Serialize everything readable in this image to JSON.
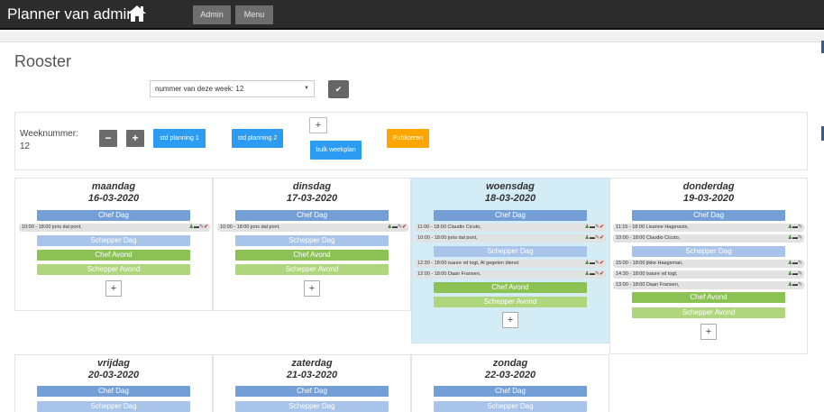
{
  "header": {
    "brand": "Planner van admin",
    "home_icon": "home-icon",
    "nav": [
      {
        "label": "Admin"
      },
      {
        "label": "Menu"
      }
    ]
  },
  "page": {
    "title": "Rooster",
    "week_select": "nummer van deze week: 12",
    "confirm_icon": "check-icon"
  },
  "controls": {
    "week_label": "Weeknummer:",
    "week_number": "12",
    "minus": "−",
    "plus": "+",
    "std1": "std planning 1",
    "std2": "std planning 2",
    "bulk_plus": "+",
    "bulk": "bulk weekplan",
    "publish": "Publiceren"
  },
  "colors": {
    "chef_dag": "#739fd6",
    "schepper_dag": "#a9c4ea",
    "chef_avond": "#8cc153",
    "schepper_avond": "#b0d67d",
    "publish": "#ffa500",
    "std": "#2b9cf2",
    "today": "#d4ecf6"
  },
  "days": [
    {
      "name": "maandag",
      "date": "16-03-2020",
      "chef_dag": "Chef Dag",
      "chef_dag_shifts": [
        {
          "text": "10:00 - 18:00 joris dal pont,",
          "icons": "user,del,edit,ok"
        }
      ],
      "schepper_dag": "Schepper Dag",
      "chef_avond": "Chef Avond",
      "schepper_avond": "Schepper Avond",
      "add": "+"
    },
    {
      "name": "dinsdag",
      "date": "17-03-2020",
      "chef_dag": "Chef Dag",
      "chef_dag_shifts": [
        {
          "text": "10:00 - 18:00 joris dal pont,",
          "icons": "user,del,edit,ok"
        }
      ],
      "schepper_dag": "Schepper Dag",
      "chef_avond": "Chef Avond",
      "schepper_avond": "Schepper Avond",
      "add": "+"
    },
    {
      "name": "woensdag",
      "date": "18-03-2020",
      "chef_dag": "Chef Dag",
      "chef_dag_shifts": [
        {
          "text": "11:00 - 18:00 Claudio Cicuto,",
          "icons": "user,del,edit,ok"
        },
        {
          "text": "10:00 - 18:00 joris dal pont,",
          "icons": "user,del,edit,ok"
        }
      ],
      "schepper_dag": "Schepper Dag",
      "schepper_dag_shifts": [
        {
          "text": "12:30 - 18:00 isaure vd togt, Al gegeten dienst",
          "icons": "user,del,edit,ok"
        },
        {
          "text": "12:00 - 18:00 Daan Fransen,",
          "icons": "user,del,edit,ok"
        }
      ],
      "chef_avond": "Chef Avond",
      "schepper_avond": "Schepper Avond",
      "add": "+"
    },
    {
      "name": "donderdag",
      "date": "19-03-2020",
      "chef_dag": "Chef Dag",
      "chef_dag_shifts": [
        {
          "text": "11:15 - 18:00 Lisanne Hagerasts,",
          "icons": "user,del,edit"
        },
        {
          "text": "10:00 - 18:00 Claudio Cicuto,",
          "icons": "user,del,edit"
        }
      ],
      "schepper_dag": "Schepper Dag",
      "schepper_dag_shifts": [
        {
          "text": "15:00 - 18:00 jikke Haagsman,",
          "icons": "user,del,edit"
        },
        {
          "text": "14:30 - 18:00 isaure vd togt,",
          "icons": "user,del,edit"
        },
        {
          "text": "13:00 - 18:00 Daan Fransen,",
          "icons": "user,del,edit"
        }
      ],
      "chef_avond": "Chef Avond",
      "schepper_avond": "Schepper Avond",
      "add": "+"
    },
    {
      "name": "vrijdag",
      "date": "20-03-2020",
      "chef_dag": "Chef Dag",
      "schepper_dag": "Schepper Dag"
    },
    {
      "name": "zaterdag",
      "date": "21-03-2020",
      "chef_dag": "Chef Dag",
      "schepper_dag": "Schepper Dag"
    },
    {
      "name": "zondag",
      "date": "22-03-2020",
      "chef_dag": "Chef Dag",
      "schepper_dag": "Schepper Dag"
    }
  ]
}
